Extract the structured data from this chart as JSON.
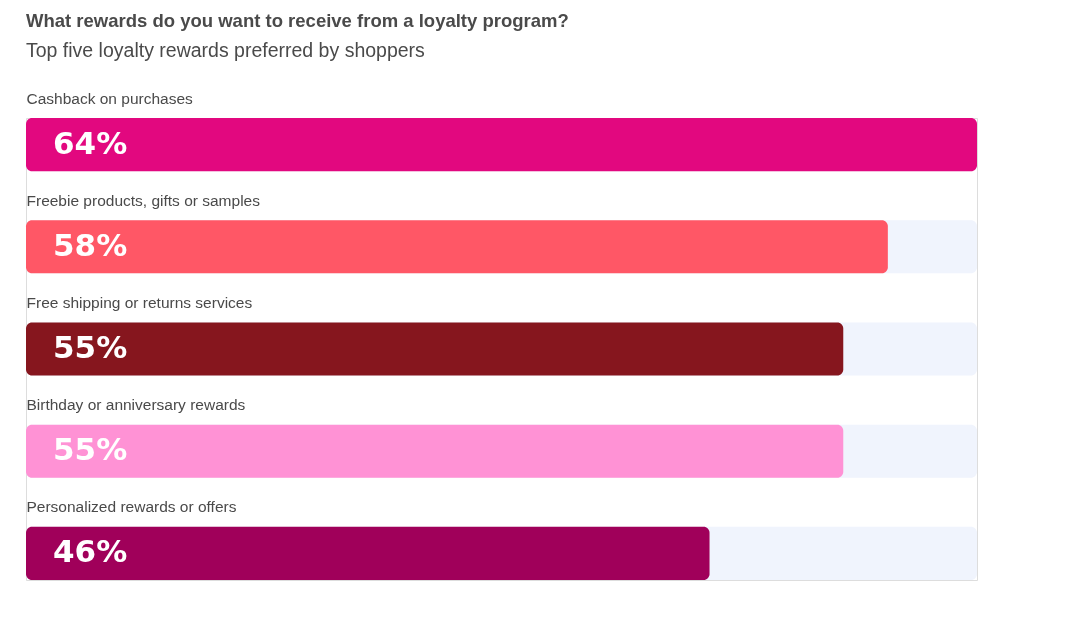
{
  "chart_data": {
    "type": "bar",
    "orientation": "horizontal",
    "title": "What rewards do you want to receive from a loyalty program?",
    "subtitle": "Top five loyalty rewards preferred by shoppers",
    "categories": [
      "Cashback on purchases",
      "Freebie products, gifts or samples",
      "Free shipping or returns services",
      "Birthday or anniversary rewards",
      "Personalized rewards or offers"
    ],
    "values": [
      64,
      58,
      55,
      55,
      46
    ],
    "colors": [
      "#e2087f",
      "#ff5766",
      "#86161e",
      "#ff92d5",
      "#a0005a"
    ],
    "value_labels": [
      "64%",
      "58%",
      "55%",
      "55%",
      "46%"
    ]
  }
}
